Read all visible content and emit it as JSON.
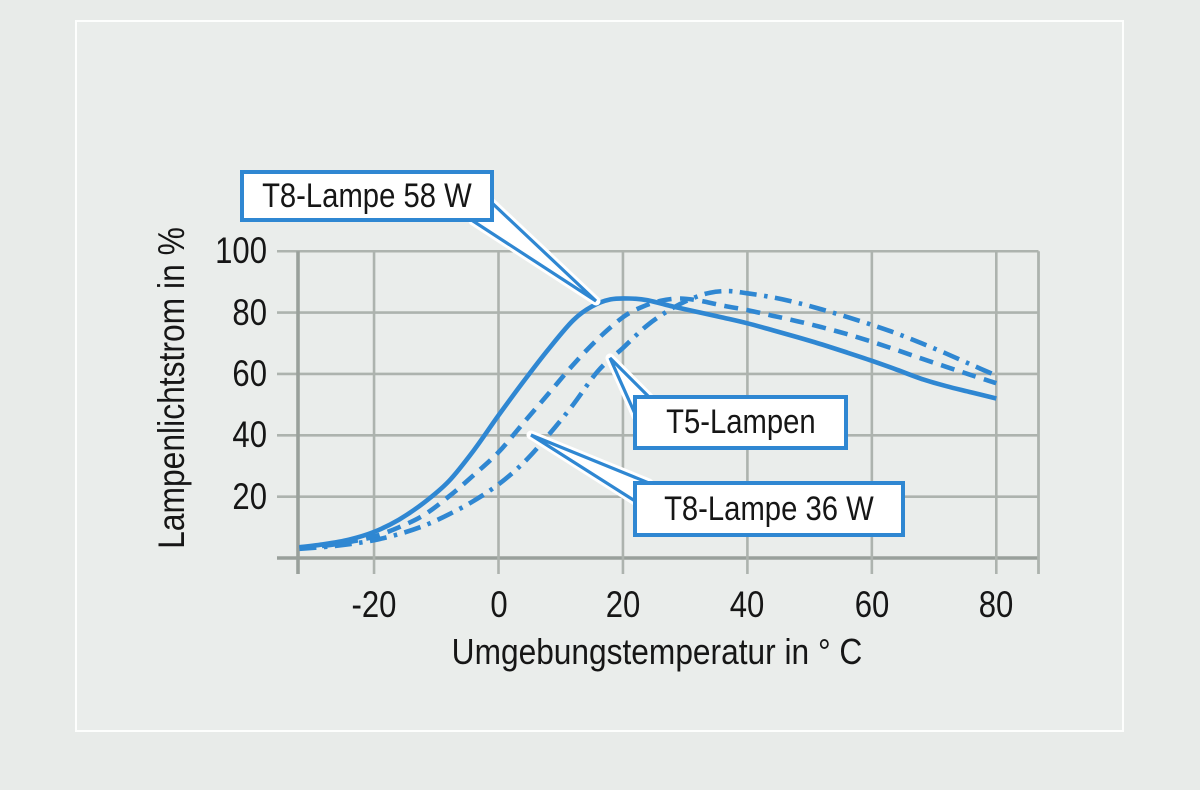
{
  "app": {
    "background": "#e8ebe9",
    "card_background": "#eaedeb",
    "accent_blue": "#2f87d2",
    "grid_color": "#adb3ae",
    "axis_color": "#99a09b",
    "text_color": "#161616"
  },
  "chart_data": {
    "type": "line",
    "title": "",
    "xlabel": "Umgebungstemperatur in ° C",
    "ylabel": "Lampenlichtstrom in %",
    "xlim": [
      -32,
      87
    ],
    "ylim": [
      0,
      100
    ],
    "xticks": [
      -20,
      0,
      20,
      40,
      60,
      80
    ],
    "yticks": [
      20,
      40,
      60,
      80,
      100
    ],
    "grid": true,
    "legend_position": "callouts-on-plot",
    "series": [
      {
        "name": "T8-Lampe 58 W",
        "style": "solid",
        "peak": {
          "x": 19,
          "y": 84.6
        },
        "points": [
          [
            -32,
            3.5
          ],
          [
            -28,
            4.5
          ],
          [
            -24,
            6
          ],
          [
            -20,
            8.5
          ],
          [
            -16,
            12.5
          ],
          [
            -12,
            18
          ],
          [
            -8,
            25
          ],
          [
            -4,
            35
          ],
          [
            0,
            46.5
          ],
          [
            4,
            57.5
          ],
          [
            8,
            68
          ],
          [
            12,
            77.5
          ],
          [
            15,
            82
          ],
          [
            18,
            84.3
          ],
          [
            21,
            84.6
          ],
          [
            24,
            84
          ],
          [
            28,
            82
          ],
          [
            32,
            80.2
          ],
          [
            36,
            78.4
          ],
          [
            40,
            76.5
          ],
          [
            44,
            74.3
          ],
          [
            48,
            72
          ],
          [
            52,
            69.6
          ],
          [
            56,
            67
          ],
          [
            60,
            64.3
          ],
          [
            64,
            61.4
          ],
          [
            68,
            58.4
          ],
          [
            72,
            56
          ],
          [
            76,
            54
          ],
          [
            80,
            52
          ]
        ]
      },
      {
        "name": "T8-Lampe 36 W",
        "style": "dashed",
        "peak": {
          "x": 29,
          "y": 84.6
        },
        "points": [
          [
            -32,
            3.2
          ],
          [
            -28,
            4
          ],
          [
            -24,
            5.2
          ],
          [
            -20,
            7
          ],
          [
            -16,
            10
          ],
          [
            -12,
            14
          ],
          [
            -8,
            20
          ],
          [
            -4,
            27
          ],
          [
            0,
            34.5
          ],
          [
            4,
            44
          ],
          [
            8,
            53.5
          ],
          [
            12,
            63
          ],
          [
            16,
            71.5
          ],
          [
            20,
            78.5
          ],
          [
            23,
            81.8
          ],
          [
            26,
            83.8
          ],
          [
            29,
            84.6
          ],
          [
            32,
            84
          ],
          [
            36,
            82.3
          ],
          [
            40,
            80.8
          ],
          [
            44,
            79
          ],
          [
            48,
            77.2
          ],
          [
            52,
            75.2
          ],
          [
            56,
            73
          ],
          [
            60,
            70.5
          ],
          [
            64,
            67.8
          ],
          [
            68,
            65
          ],
          [
            72,
            62.3
          ],
          [
            76,
            59.6
          ],
          [
            80,
            57
          ]
        ]
      },
      {
        "name": "T5-Lampen",
        "style": "dashdot",
        "peak": {
          "x": 36,
          "y": 87
        },
        "points": [
          [
            -32,
            3
          ],
          [
            -28,
            3.6
          ],
          [
            -24,
            4.5
          ],
          [
            -20,
            5.8
          ],
          [
            -16,
            7.8
          ],
          [
            -12,
            10.5
          ],
          [
            -8,
            14.2
          ],
          [
            -4,
            18.6
          ],
          [
            0,
            24
          ],
          [
            4,
            31
          ],
          [
            8,
            40
          ],
          [
            12,
            50
          ],
          [
            16,
            61
          ],
          [
            20,
            68.5
          ],
          [
            24,
            76
          ],
          [
            28,
            81.5
          ],
          [
            31,
            84.5
          ],
          [
            34,
            86.5
          ],
          [
            37,
            87
          ],
          [
            40,
            86.3
          ],
          [
            44,
            85
          ],
          [
            48,
            83.2
          ],
          [
            52,
            81
          ],
          [
            56,
            78.6
          ],
          [
            60,
            76
          ],
          [
            64,
            73.2
          ],
          [
            68,
            70
          ],
          [
            72,
            66.6
          ],
          [
            76,
            63
          ],
          [
            80,
            59.5
          ]
        ]
      }
    ],
    "callouts": [
      {
        "label": "T8-Lampe 58 W",
        "series": "T8-Lampe 58 W"
      },
      {
        "label": "T5-Lampen",
        "series": "T5-Lampen"
      },
      {
        "label": "T8-Lampe 36 W",
        "series": "T8-Lampe 36 W"
      }
    ]
  }
}
